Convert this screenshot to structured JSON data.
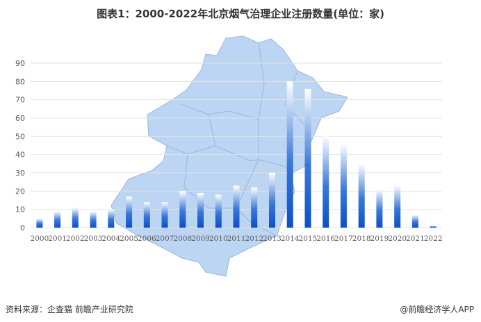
{
  "title": "图表1：2000-2022年北京烟气治理企业注册数量(单位：家)",
  "footer": {
    "source": "资料来源：企查猫 前瞻产业研究院",
    "brand": "@前瞻经济学人APP"
  },
  "colors": {
    "bar_bottom": "#0a50c8",
    "bar_top": "#ffffff",
    "map_fill": "#bcd5f3",
    "map_stroke": "#9ab5d8",
    "grid": "#e3e3e3",
    "axis_text": "#595959"
  },
  "chart_data": {
    "type": "bar",
    "title": "图表1：2000-2022年北京烟气治理企业注册数量(单位：家)",
    "categories": [
      "2000",
      "2001",
      "2002",
      "2003",
      "2004",
      "2005",
      "2006",
      "2007",
      "2008",
      "2009",
      "2010",
      "2011",
      "2012",
      "2013",
      "2014",
      "2015",
      "2016",
      "2017",
      "2018",
      "2019",
      "2020",
      "2021",
      "2022"
    ],
    "values": [
      5,
      9,
      11,
      9,
      10,
      17,
      14,
      14,
      20,
      19,
      18,
      23,
      22,
      30,
      80,
      76,
      50,
      46,
      35,
      21,
      23,
      7,
      1
    ],
    "ylim": [
      0,
      90
    ],
    "yticks": [
      0,
      10,
      20,
      30,
      40,
      50,
      60,
      70,
      80,
      90
    ],
    "grid": true,
    "legend": "none"
  }
}
